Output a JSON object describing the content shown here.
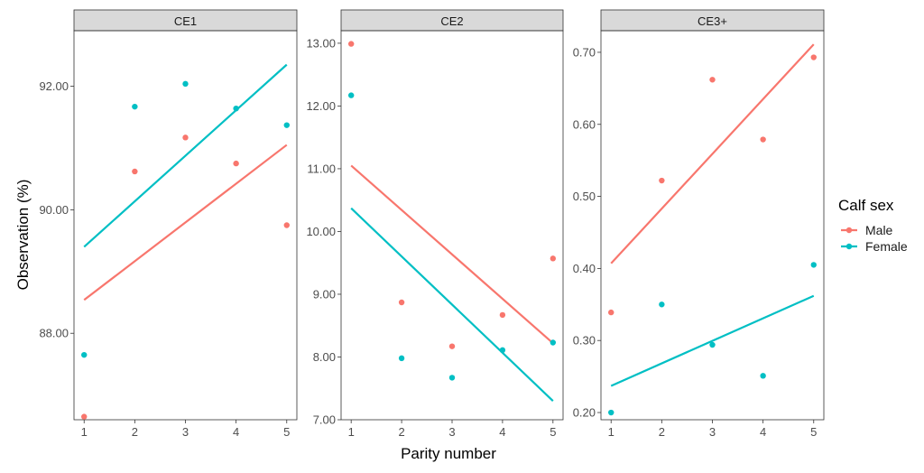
{
  "chart_data": {
    "type": "scatter",
    "xlabel": "Parity number",
    "ylabel": "Observation (%)",
    "x_ticks": [
      1,
      2,
      3,
      4,
      5
    ],
    "legend": {
      "title": "Calf sex",
      "placement": "right",
      "entries": [
        {
          "label": "Male",
          "color": "#F8766D"
        },
        {
          "label": "Female",
          "color": "#00BFC4"
        }
      ]
    },
    "panels": [
      {
        "title": "CE1",
        "xlim": [
          0.8,
          5.2
        ],
        "ylim": [
          86.6,
          92.9
        ],
        "y_ticks": [
          88.0,
          90.0,
          92.0
        ],
        "y_tick_labels": [
          "88.00",
          "90.00",
          "92.00"
        ],
        "series": [
          {
            "name": "Male",
            "color": "#F8766D",
            "points": [
              [
                1,
                86.65
              ],
              [
                2,
                90.62
              ],
              [
                3,
                91.17
              ],
              [
                4,
                90.75
              ],
              [
                5,
                89.75
              ]
            ],
            "fit": [
              [
                1,
                88.54
              ],
              [
                5,
                91.05
              ]
            ]
          },
          {
            "name": "Female",
            "color": "#00BFC4",
            "points": [
              [
                1,
                87.65
              ],
              [
                2,
                91.67
              ],
              [
                3,
                92.04
              ],
              [
                4,
                91.64
              ],
              [
                5,
                91.37
              ]
            ],
            "fit": [
              [
                1,
                89.4
              ],
              [
                5,
                92.35
              ]
            ]
          }
        ]
      },
      {
        "title": "CE2",
        "xlim": [
          0.8,
          5.2
        ],
        "ylim": [
          7.0,
          13.2
        ],
        "y_ticks": [
          7.0,
          8.0,
          9.0,
          10.0,
          11.0,
          12.0,
          13.0
        ],
        "y_tick_labels": [
          "7.00",
          "8.00",
          "9.00",
          "10.00",
          "11.00",
          "12.00",
          "13.00"
        ],
        "series": [
          {
            "name": "Male",
            "color": "#F8766D",
            "points": [
              [
                1,
                12.99
              ],
              [
                2,
                8.87
              ],
              [
                3,
                8.17
              ],
              [
                4,
                8.67
              ],
              [
                5,
                9.57
              ]
            ],
            "fit": [
              [
                1,
                11.05
              ],
              [
                5,
                8.22
              ]
            ]
          },
          {
            "name": "Female",
            "color": "#00BFC4",
            "points": [
              [
                1,
                12.17
              ],
              [
                2,
                7.98
              ],
              [
                3,
                7.67
              ],
              [
                4,
                8.11
              ],
              [
                5,
                8.23
              ]
            ],
            "fit": [
              [
                1,
                10.37
              ],
              [
                5,
                7.3
              ]
            ]
          }
        ]
      },
      {
        "title": "CE3+",
        "xlim": [
          0.8,
          5.2
        ],
        "ylim": [
          0.19,
          0.73
        ],
        "y_ticks": [
          0.2,
          0.3,
          0.4,
          0.5,
          0.6,
          0.7
        ],
        "y_tick_labels": [
          "0.20",
          "0.30",
          "0.40",
          "0.50",
          "0.60",
          "0.70"
        ],
        "series": [
          {
            "name": "Male",
            "color": "#F8766D",
            "points": [
              [
                1,
                0.339
              ],
              [
                2,
                0.522
              ],
              [
                3,
                0.662
              ],
              [
                4,
                0.579
              ],
              [
                5,
                0.693
              ]
            ],
            "fit": [
              [
                1,
                0.407
              ],
              [
                5,
                0.711
              ]
            ]
          },
          {
            "name": "Female",
            "color": "#00BFC4",
            "points": [
              [
                1,
                0.2
              ],
              [
                2,
                0.35
              ],
              [
                3,
                0.294
              ],
              [
                4,
                0.251
              ],
              [
                5,
                0.405
              ]
            ],
            "fit": [
              [
                1,
                0.237
              ],
              [
                5,
                0.362
              ]
            ]
          }
        ]
      }
    ]
  }
}
